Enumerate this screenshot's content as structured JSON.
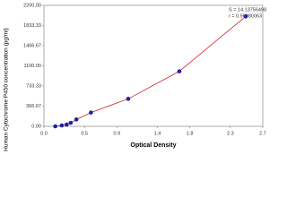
{
  "chart_data": {
    "type": "scatter",
    "x_label": "Optical Density",
    "y_label": "Human Cytochrome P450 concentration (pg/ml)",
    "annotations": [
      "S = 14.13756498",
      "r = 0.99980063"
    ],
    "x": [
      0.14,
      0.22,
      0.28,
      0.33,
      0.4,
      0.58,
      1.04,
      1.67,
      2.49
    ],
    "values": [
      0,
      16,
      31,
      63,
      125,
      250,
      500,
      1000,
      2000
    ],
    "marker_color": "#1f1fa8",
    "line_color": "#cc2020",
    "xlim": [
      0,
      2.7
    ],
    "xticks": [
      {
        "value": 0,
        "label": "0.0"
      },
      0.5,
      0.9,
      1.4,
      1.8,
      2.3,
      2.7
    ],
    "ylim": [
      0,
      2200
    ],
    "yticks": [
      {
        "value": 0,
        "label": "0.00"
      },
      366.67,
      733.33,
      {
        "value": 1100,
        "label": "1100.00"
      },
      1466.67,
      1833.33,
      {
        "value": 2200,
        "label": "2200.00"
      }
    ],
    "grid": false
  }
}
